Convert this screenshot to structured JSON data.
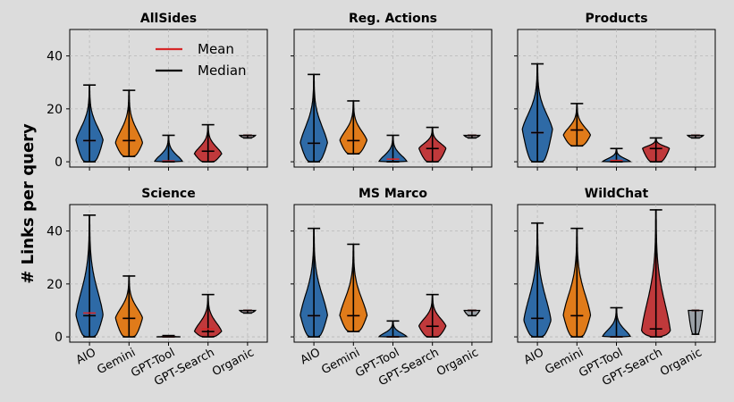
{
  "chart_data": {
    "type": "violin",
    "ylabel": "# Links per query",
    "ylim": [
      -2,
      50
    ],
    "yticks": [
      0,
      20,
      40
    ],
    "categories": [
      "AIO",
      "Gemini",
      "GPT-Tool",
      "GPT-Search",
      "Organic"
    ],
    "category_colors": [
      "#2e6aa6",
      "#e07b1a",
      "#2e6aa6",
      "#c0393b",
      "#9aa0a6"
    ],
    "legend": {
      "placement": "upper-center",
      "entries": [
        {
          "label": "Mean",
          "color": "#d62728"
        },
        {
          "label": "Median",
          "color": "#000000"
        }
      ]
    },
    "grid": true,
    "panels": [
      {
        "title": "AllSides",
        "stats": [
          {
            "min": 0,
            "max": 29,
            "mean": 8,
            "median": 8,
            "peak": 8,
            "width": 0.34
          },
          {
            "min": 2,
            "max": 27,
            "mean": 8,
            "median": 8,
            "peak": 7,
            "width": 0.34
          },
          {
            "min": 0,
            "max": 10,
            "mean": 0.3,
            "median": 0,
            "peak": 0,
            "width": 0.35
          },
          {
            "min": 0,
            "max": 14,
            "mean": 4,
            "median": 4,
            "peak": 3,
            "width": 0.34
          },
          {
            "min": 9,
            "max": 10,
            "mean": 10,
            "median": 10,
            "peak": 10,
            "width": 0.2
          }
        ]
      },
      {
        "title": "Reg. Actions",
        "stats": [
          {
            "min": 0,
            "max": 33,
            "mean": 7,
            "median": 7,
            "peak": 7,
            "width": 0.34
          },
          {
            "min": 3,
            "max": 23,
            "mean": 8,
            "median": 8,
            "peak": 8,
            "width": 0.34
          },
          {
            "min": 0,
            "max": 10,
            "mean": 1,
            "median": 0,
            "peak": 0,
            "width": 0.35
          },
          {
            "min": 0,
            "max": 13,
            "mean": 5,
            "median": 5,
            "peak": 5,
            "width": 0.34
          },
          {
            "min": 9,
            "max": 10,
            "mean": 10,
            "median": 10,
            "peak": 10,
            "width": 0.2
          }
        ]
      },
      {
        "title": "Products",
        "stats": [
          {
            "min": 0,
            "max": 37,
            "mean": 11,
            "median": 11,
            "peak": 12,
            "width": 0.38
          },
          {
            "min": 6,
            "max": 22,
            "mean": 12,
            "median": 12,
            "peak": 10,
            "width": 0.34
          },
          {
            "min": 0,
            "max": 5,
            "mean": 0.5,
            "median": 0,
            "peak": 0,
            "width": 0.35
          },
          {
            "min": 0,
            "max": 9,
            "mean": 5,
            "median": 5,
            "peak": 5,
            "width": 0.34
          },
          {
            "min": 9,
            "max": 10,
            "mean": 10,
            "median": 10,
            "peak": 10,
            "width": 0.2
          }
        ]
      },
      {
        "title": "Science",
        "stats": [
          {
            "min": 0,
            "max": 46,
            "mean": 9,
            "median": 8,
            "peak": 8,
            "width": 0.34
          },
          {
            "min": 0,
            "max": 23,
            "mean": 7,
            "median": 7,
            "peak": 7,
            "width": 0.34
          },
          {
            "min": 0,
            "max": 0.5,
            "mean": 0,
            "median": 0,
            "peak": 0,
            "width": 0.3
          },
          {
            "min": 0,
            "max": 16,
            "mean": 3,
            "median": 2,
            "peak": 2,
            "width": 0.34
          },
          {
            "min": 9,
            "max": 10,
            "mean": 10,
            "median": 10,
            "peak": 10,
            "width": 0.2
          }
        ]
      },
      {
        "title": "MS Marco",
        "stats": [
          {
            "min": 0,
            "max": 41,
            "mean": 8,
            "median": 8,
            "peak": 8,
            "width": 0.34
          },
          {
            "min": 2,
            "max": 35,
            "mean": 8,
            "median": 8,
            "peak": 8,
            "width": 0.34
          },
          {
            "min": 0,
            "max": 6,
            "mean": 0,
            "median": 0,
            "peak": 0,
            "width": 0.35
          },
          {
            "min": 0,
            "max": 16,
            "mean": 4,
            "median": 4,
            "peak": 4,
            "width": 0.34
          },
          {
            "min": 8,
            "max": 10,
            "mean": 10,
            "median": 10,
            "peak": 10,
            "width": 0.2
          }
        ]
      },
      {
        "title": "WildChat",
        "stats": [
          {
            "min": 0,
            "max": 43,
            "mean": 7,
            "median": 7,
            "peak": 6,
            "width": 0.34
          },
          {
            "min": 0,
            "max": 41,
            "mean": 8,
            "median": 8,
            "peak": 8,
            "width": 0.34
          },
          {
            "min": 0,
            "max": 11,
            "mean": 0,
            "median": 0,
            "peak": 0,
            "width": 0.35
          },
          {
            "min": 0,
            "max": 48,
            "mean": 3,
            "median": 3,
            "peak": 2,
            "width": 0.36
          },
          {
            "min": 1,
            "max": 10,
            "mean": 10,
            "median": 10,
            "peak": 10,
            "width": 0.18
          }
        ]
      }
    ]
  }
}
